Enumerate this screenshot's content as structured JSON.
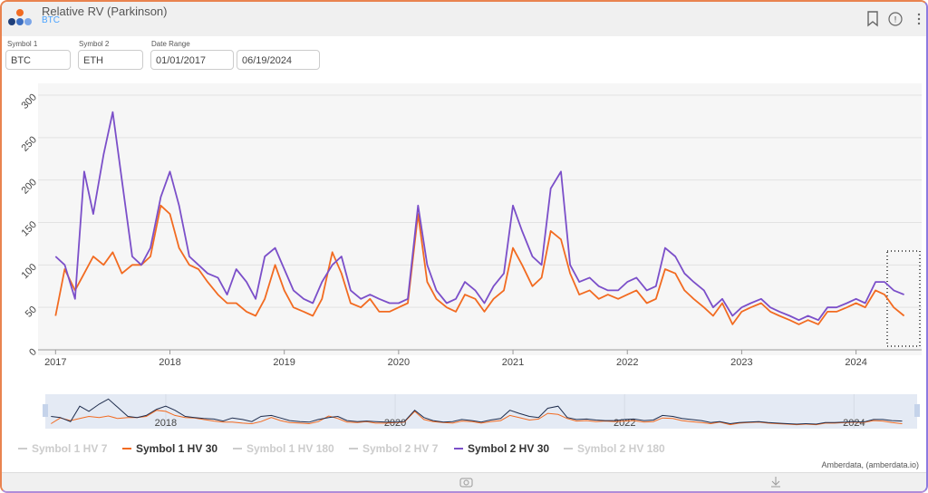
{
  "header": {
    "title": "Relative RV (Parkinson)",
    "subtitle": "BTC"
  },
  "controls": {
    "symbol1": {
      "label": "Symbol 1",
      "value": "BTC"
    },
    "symbol2": {
      "label": "Symbol 2",
      "value": "ETH"
    },
    "date_range": {
      "label": "Date Range",
      "start": "01/01/2017",
      "end": "06/19/2024"
    }
  },
  "chart_data": {
    "type": "line",
    "x": [
      2017,
      2017.08,
      2017.17,
      2017.25,
      2017.33,
      2017.42,
      2017.5,
      2017.58,
      2017.67,
      2017.75,
      2017.83,
      2017.92,
      2018,
      2018.08,
      2018.17,
      2018.25,
      2018.33,
      2018.42,
      2018.5,
      2018.58,
      2018.67,
      2018.75,
      2018.83,
      2018.92,
      2019,
      2019.08,
      2019.17,
      2019.25,
      2019.33,
      2019.42,
      2019.5,
      2019.58,
      2019.67,
      2019.75,
      2019.83,
      2019.92,
      2020,
      2020.08,
      2020.17,
      2020.25,
      2020.33,
      2020.42,
      2020.5,
      2020.58,
      2020.67,
      2020.75,
      2020.83,
      2020.92,
      2021,
      2021.08,
      2021.17,
      2021.25,
      2021.33,
      2021.42,
      2021.5,
      2021.58,
      2021.67,
      2021.75,
      2021.83,
      2021.92,
      2022,
      2022.08,
      2022.17,
      2022.25,
      2022.33,
      2022.42,
      2022.5,
      2022.58,
      2022.67,
      2022.75,
      2022.83,
      2022.92,
      2023,
      2023.08,
      2023.17,
      2023.25,
      2023.33,
      2023.42,
      2023.5,
      2023.58,
      2023.67,
      2023.75,
      2023.83,
      2023.92,
      2024,
      2024.08,
      2024.17,
      2024.25,
      2024.33,
      2024.42
    ],
    "series": [
      {
        "name": "Symbol 1 HV 7",
        "color": "#cccccc",
        "visible": false
      },
      {
        "name": "Symbol 1 HV 30",
        "color": "#f26b21",
        "visible": true,
        "values": [
          40,
          95,
          70,
          90,
          110,
          100,
          115,
          90,
          100,
          100,
          110,
          170,
          160,
          120,
          100,
          95,
          80,
          65,
          55,
          55,
          45,
          40,
          60,
          100,
          70,
          50,
          45,
          40,
          60,
          115,
          90,
          55,
          50,
          60,
          45,
          45,
          50,
          55,
          160,
          80,
          60,
          50,
          45,
          65,
          60,
          45,
          60,
          70,
          120,
          100,
          75,
          85,
          140,
          130,
          90,
          65,
          70,
          60,
          65,
          60,
          65,
          70,
          55,
          60,
          95,
          90,
          70,
          60,
          50,
          40,
          55,
          30,
          45,
          50,
          55,
          45,
          40,
          35,
          30,
          35,
          30,
          45,
          45,
          50,
          55,
          50,
          70,
          65,
          50,
          40
        ]
      },
      {
        "name": "Symbol 1 HV 180",
        "color": "#cccccc",
        "visible": false
      },
      {
        "name": "Symbol 2 HV 7",
        "color": "#cccccc",
        "visible": false
      },
      {
        "name": "Symbol 2 HV 30",
        "color": "#7b4fc9",
        "visible": true,
        "values": [
          110,
          100,
          60,
          210,
          160,
          230,
          280,
          200,
          110,
          100,
          120,
          180,
          210,
          170,
          110,
          100,
          90,
          85,
          65,
          95,
          80,
          60,
          110,
          120,
          95,
          70,
          60,
          55,
          80,
          100,
          110,
          70,
          60,
          65,
          60,
          55,
          55,
          60,
          170,
          100,
          70,
          55,
          60,
          80,
          70,
          55,
          75,
          90,
          170,
          140,
          110,
          100,
          190,
          210,
          100,
          80,
          85,
          75,
          70,
          70,
          80,
          85,
          70,
          75,
          120,
          110,
          90,
          80,
          70,
          50,
          60,
          40,
          50,
          55,
          60,
          50,
          45,
          40,
          35,
          40,
          35,
          50,
          50,
          55,
          60,
          55,
          80,
          80,
          70,
          65
        ]
      },
      {
        "name": "Symbol 2 HV 180",
        "color": "#cccccc",
        "visible": false
      }
    ],
    "xlim": [
      2016.95,
      2024.55
    ],
    "xticks": [
      2017,
      2018,
      2019,
      2020,
      2021,
      2022,
      2023,
      2024
    ],
    "ylim": [
      0,
      300
    ],
    "yticks": [
      0,
      50,
      100,
      150,
      200,
      250,
      300
    ],
    "grid": true,
    "navigator": {
      "xticks": [
        2018,
        2020,
        2022,
        2024
      ],
      "colors": [
        "#f26b21",
        "#1f2d4d"
      ]
    }
  },
  "footer": {
    "credit": "Amberdata, (amberdata.io)"
  }
}
